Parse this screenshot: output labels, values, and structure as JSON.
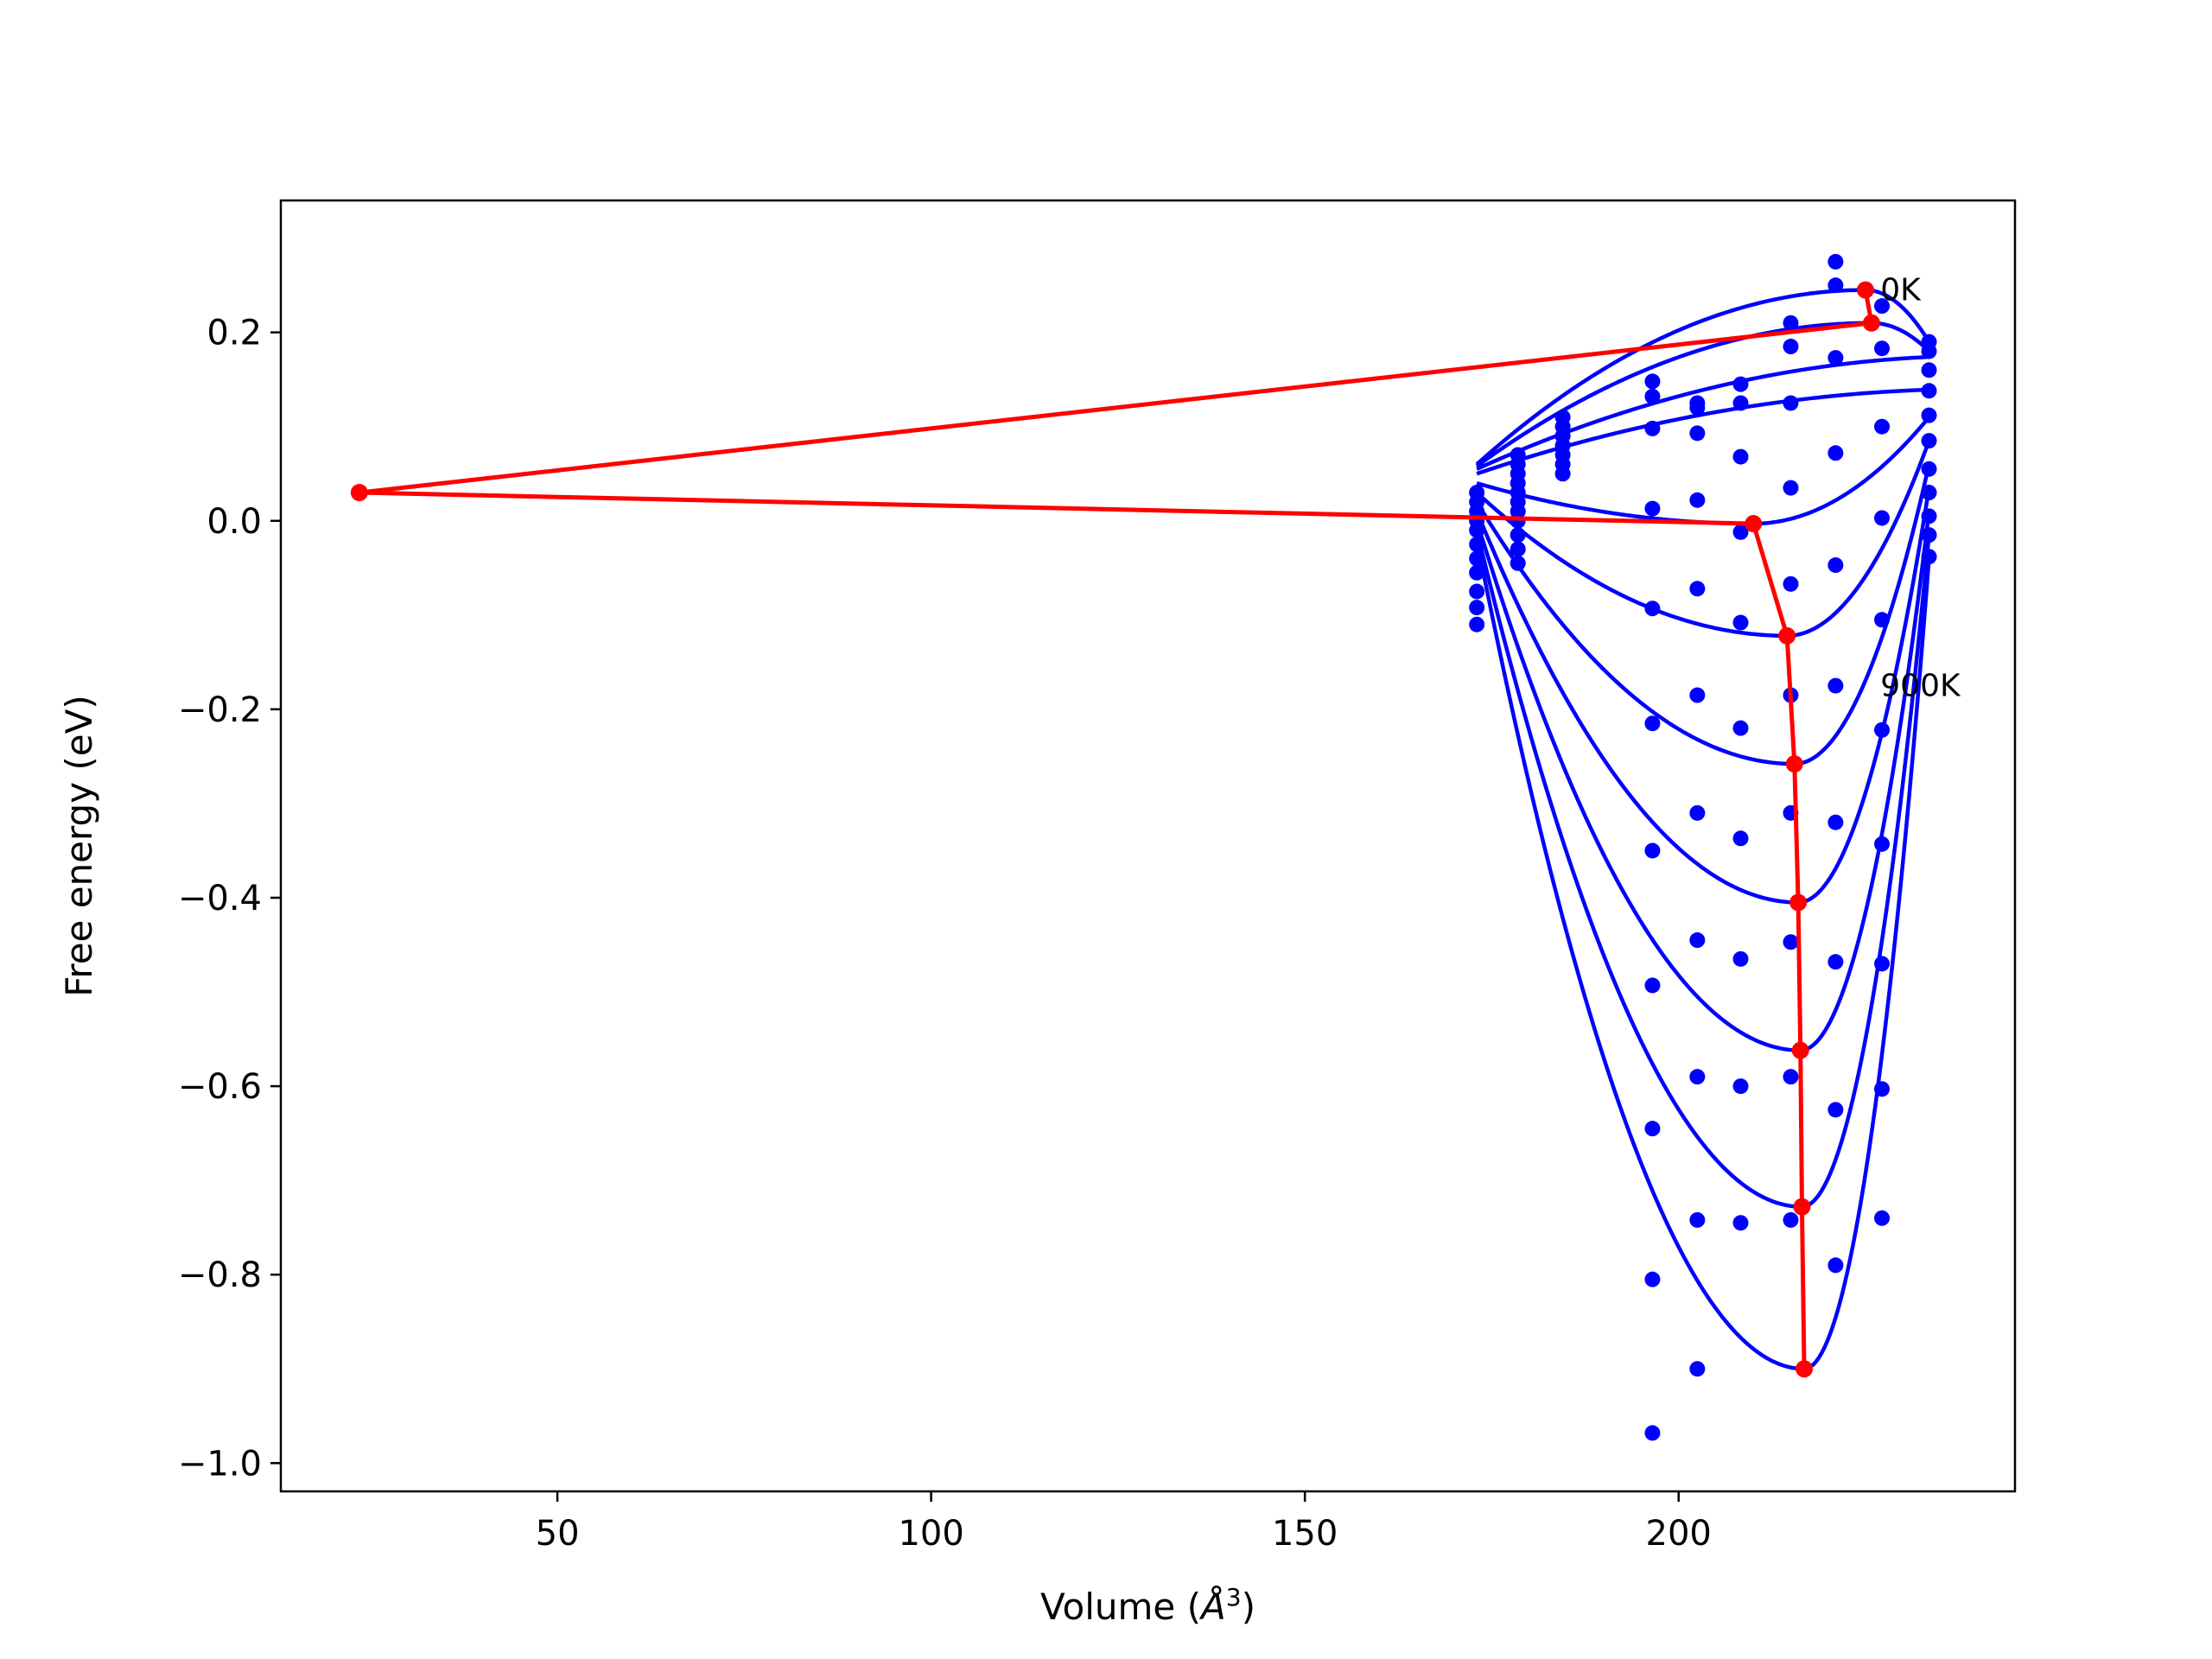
{
  "chart_data": {
    "type": "line",
    "title": "",
    "xlabel": "Volume (",
    "xlabel_unit": "Å",
    "xlabel_sup": "3",
    "xlabel_close": ")",
    "ylabel": "Free energy (eV)",
    "xlim": [
      13,
      245
    ],
    "ylim": [
      -1.03,
      0.34
    ],
    "xticks": [
      50,
      100,
      150,
      200
    ],
    "xtick_labels": [
      "50",
      "100",
      "150",
      "200"
    ],
    "yticks": [
      -1.0,
      -0.8,
      -0.6,
      -0.4,
      -0.2,
      0.0,
      0.2
    ],
    "ytick_labels": [
      "−1.0",
      "−0.8",
      "−0.6",
      "−0.4",
      "−0.2",
      "0.0",
      "0.2"
    ],
    "grid": false,
    "colors": {
      "curves": "#0000ff",
      "minima": "#ff0000"
    },
    "annotations": [
      {
        "text": "0K",
        "x": 227,
        "y": 0.245
      },
      {
        "text": "900K",
        "x": 227,
        "y": -0.175
      }
    ],
    "scatter_x": [
      196.5,
      202.5,
      208.3,
      215.0,
      221.0,
      227.2,
      233.5
    ],
    "scatter_y": [
      [
        0.148,
        0.125,
        0.145,
        0.21,
        0.275,
        0.228,
        0.19
      ],
      [
        0.132,
        0.12,
        0.125,
        0.185,
        0.25,
        0.183,
        0.18
      ],
      [
        0.098,
        0.093,
        0.068,
        0.125,
        0.173,
        0.1,
        0.16
      ],
      [
        0.013,
        0.022,
        -0.012,
        0.035,
        0.072,
        0.003,
        0.138
      ],
      [
        -0.093,
        -0.072,
        -0.108,
        -0.067,
        -0.047,
        -0.105,
        0.112
      ],
      [
        -0.215,
        -0.185,
        -0.22,
        -0.185,
        -0.175,
        -0.222,
        0.085
      ],
      [
        -0.35,
        -0.31,
        -0.337,
        -0.31,
        -0.32,
        -0.343,
        0.055
      ],
      [
        -0.493,
        -0.445,
        -0.465,
        -0.447,
        -0.468,
        -0.47,
        0.03
      ],
      [
        -0.645,
        -0.59,
        -0.6,
        -0.59,
        -0.625,
        -0.603,
        0.005
      ],
      [
        -0.805,
        -0.742,
        -0.745,
        -0.742,
        -0.79,
        -0.74,
        -0.015
      ],
      [
        -0.968,
        -0.9,
        null,
        null,
        null,
        null,
        -0.038
      ]
    ],
    "small_volume_x": [
      173.0,
      178.5,
      184.5
    ],
    "small_volume_points": [
      [
        0.03,
        0.07,
        0.11
      ],
      [
        0.02,
        0.06,
        0.1
      ],
      [
        0.01,
        0.05,
        0.09
      ],
      [
        0.0,
        0.04,
        0.08
      ],
      [
        -0.01,
        0.03,
        0.07
      ],
      [
        -0.025,
        0.02,
        0.06
      ],
      [
        -0.04,
        0.01,
        0.05
      ],
      [
        -0.055,
        0.0,
        null
      ],
      [
        -0.075,
        -0.015,
        null
      ],
      [
        -0.092,
        -0.03,
        null
      ],
      [
        -0.11,
        -0.045,
        null
      ]
    ],
    "series": [
      {
        "V0": 225.0,
        "E0": 0.245,
        "left": 0.06,
        "right": 0.19
      },
      {
        "V0": 225.8,
        "E0": 0.21,
        "left": 0.058,
        "right": 0.18
      },
      {
        "V0": 240.0,
        "E0": 0.175,
        "left": 0.055,
        "right": 0.16
      },
      {
        "V0": 240.0,
        "E0": 0.14,
        "left": 0.05,
        "right": 0.13
      },
      {
        "V0": 210.0,
        "E0": -0.003,
        "left": 0.04,
        "right": 0.11
      },
      {
        "V0": 214.5,
        "E0": -0.122,
        "left": 0.03,
        "right": 0.085
      },
      {
        "V0": 215.5,
        "E0": -0.258,
        "left": 0.02,
        "right": 0.06
      },
      {
        "V0": 216.0,
        "E0": -0.405,
        "left": 0.01,
        "right": 0.035
      },
      {
        "V0": 216.3,
        "E0": -0.562,
        "left": 0.0,
        "right": 0.01
      },
      {
        "V0": 216.5,
        "E0": -0.728,
        "left": -0.01,
        "right": -0.015
      },
      {
        "V0": 216.8,
        "E0": -0.9,
        "left": -0.02,
        "right": -0.04
      }
    ],
    "minima_line": {
      "x": [
        225.0,
        225.8,
        23.5,
        210.0,
        214.5,
        215.5,
        216.0,
        216.3,
        216.5,
        216.8
      ],
      "y": [
        0.245,
        0.21,
        0.03,
        -0.003,
        -0.122,
        -0.258,
        -0.405,
        -0.562,
        -0.728,
        -0.9
      ]
    }
  }
}
